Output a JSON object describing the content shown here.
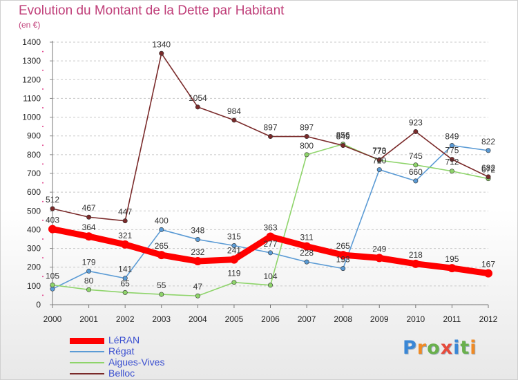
{
  "header": {
    "title": "Evolution du Montant de la Dette par Habitant",
    "subtitle": "(en €)"
  },
  "logo": {
    "text": "Proxiti",
    "colors": [
      "#3a87d6",
      "#f08a24",
      "#6ab04c",
      "#e64b3c",
      "#3a87d6",
      "#6ab04c",
      "#f08a24"
    ]
  },
  "chart_data": {
    "type": "line",
    "title": "Evolution du Montant de la Dette par Habitant",
    "subtitle": "(en €)",
    "xlabel": "",
    "ylabel": "",
    "x": [
      "2000",
      "2001",
      "2002",
      "2003",
      "2004",
      "2005",
      "2006",
      "2007",
      "2008",
      "2009",
      "2010",
      "2011",
      "2012"
    ],
    "ylim": [
      0,
      1400
    ],
    "yticks": [
      0,
      100,
      200,
      300,
      400,
      500,
      600,
      700,
      800,
      900,
      1000,
      1100,
      1200,
      1300,
      1400
    ],
    "grid": "horizontal-dashed",
    "legend_position": "bottom-left",
    "series": [
      {
        "name": "LéRAN",
        "color": "#ff0000",
        "values": [
          403,
          364,
          321,
          265,
          232,
          241,
          363,
          311,
          265,
          249,
          218,
          195,
          167
        ],
        "labels": [
          "403",
          "364",
          "321",
          "265",
          "232",
          "241",
          "363",
          "311",
          "265",
          "249",
          "218",
          "195",
          "167"
        ]
      },
      {
        "name": "Régat",
        "color": "#5b9bd5",
        "values": [
          84,
          179,
          141,
          400,
          348,
          315,
          277,
          228,
          193,
          720,
          660,
          849,
          822
        ],
        "labels": [
          "",
          "179",
          "141",
          "400",
          "348",
          "315",
          "277",
          "228",
          "193",
          "720",
          "660",
          "849",
          "822"
        ]
      },
      {
        "name": "Aigues-Vives",
        "color": "#8ed46a",
        "values": [
          105,
          80,
          65,
          55,
          47,
          119,
          104,
          800,
          856,
          770,
          745,
          712,
          672
        ],
        "labels": [
          "105",
          "80",
          "65",
          "55",
          "47",
          "119",
          "104",
          "800",
          "856",
          "770",
          "745",
          "712",
          "672"
        ]
      },
      {
        "name": "Belloc",
        "color": "#7a2a2a",
        "values": [
          512,
          467,
          447,
          1340,
          1054,
          984,
          897,
          897,
          849,
          773,
          923,
          775,
          682
        ],
        "labels": [
          "512",
          "467",
          "447",
          "1340",
          "1054",
          "984",
          "897",
          "897",
          "849",
          "773",
          "923",
          "775",
          "682"
        ]
      }
    ]
  }
}
